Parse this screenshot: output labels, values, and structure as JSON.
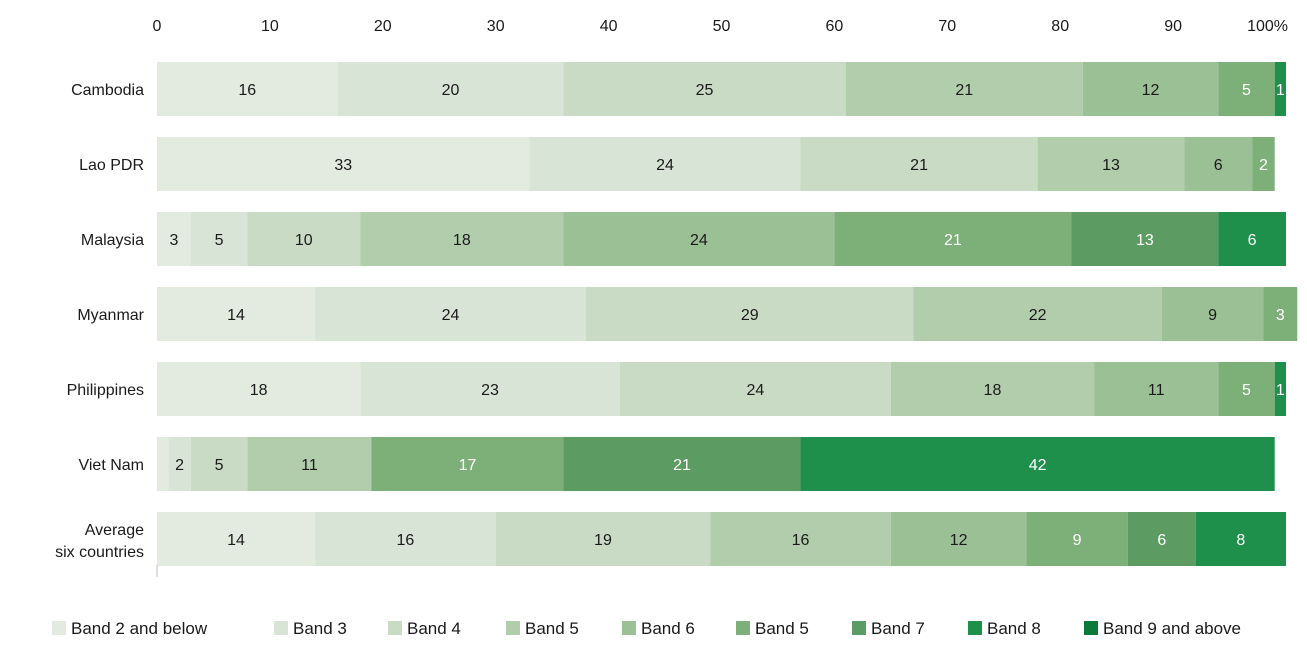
{
  "chart_data": {
    "type": "bar",
    "orientation": "horizontal",
    "stacked": true,
    "title": "",
    "xlabel": "",
    "ylabel": "",
    "xlim": [
      0,
      100
    ],
    "x_ticks": [
      {
        "value": 0,
        "label": "0"
      },
      {
        "value": 10,
        "label": "10"
      },
      {
        "value": 20,
        "label": "20"
      },
      {
        "value": 30,
        "label": "30"
      },
      {
        "value": 40,
        "label": "40"
      },
      {
        "value": 50,
        "label": "50"
      },
      {
        "value": 60,
        "label": "60"
      },
      {
        "value": 70,
        "label": "70"
      },
      {
        "value": 80,
        "label": "80"
      },
      {
        "value": 90,
        "label": "90"
      },
      {
        "value": 100,
        "label": "100%"
      }
    ],
    "grid": false,
    "legend_position": "bottom",
    "categories": [
      [
        "Cambodia"
      ],
      [
        "Lao PDR"
      ],
      [
        "Malaysia"
      ],
      [
        "Myanmar"
      ],
      [
        "Philippines"
      ],
      [
        "Viet Nam"
      ],
      [
        "Average",
        "six countries"
      ]
    ],
    "series": [
      {
        "name": "Band 2 and below",
        "color": "#e3ebe1",
        "values": [
          16,
          33,
          3,
          14,
          18,
          1,
          14
        ],
        "labels": [
          "16",
          "33",
          "3",
          "14",
          "18",
          "",
          "14"
        ],
        "label_color": "#1a1a1a"
      },
      {
        "name": "Band 3",
        "color": "#d8e4d5",
        "values": [
          20,
          24,
          5,
          24,
          23,
          2,
          16
        ],
        "labels": [
          "20",
          "24",
          "5",
          "24",
          "23",
          "2",
          "16"
        ],
        "label_color": "#1a1a1a"
      },
      {
        "name": "Band 4",
        "color": "#c9dbc5",
        "values": [
          25,
          21,
          10,
          29,
          24,
          5,
          19
        ],
        "labels": [
          "25",
          "21",
          "10",
          "29",
          "24",
          "5",
          "19"
        ],
        "label_color": "#1a1a1a"
      },
      {
        "name": "Band 5",
        "color": "#b2cdac",
        "values": [
          21,
          13,
          18,
          22,
          18,
          11,
          16
        ],
        "labels": [
          "21",
          "13",
          "18",
          "22",
          "18",
          "11",
          "16"
        ],
        "label_color": "#1a1a1a"
      },
      {
        "name": "Band 6",
        "color": "#9cc095",
        "values": [
          12,
          6,
          24,
          9,
          11,
          0,
          12
        ],
        "labels": [
          "12",
          "6",
          "24",
          "9",
          "11",
          "",
          "12"
        ],
        "label_color": "#1a1a1a"
      },
      {
        "name": "Band 5",
        "color": "#7db079",
        "values": [
          5,
          2,
          21,
          3,
          5,
          17,
          9
        ],
        "labels": [
          "5",
          "2",
          "21",
          "3",
          "5",
          "17",
          "9"
        ],
        "label_color": "#ffffff"
      },
      {
        "name": "Band 7",
        "color": "#5c9c63",
        "values": [
          0,
          0,
          13,
          0,
          0,
          21,
          6
        ],
        "labels": [
          "",
          "",
          "13",
          "",
          "",
          "21",
          "6"
        ],
        "label_color": "#ffffff"
      },
      {
        "name": "Band 8",
        "color": "#1f8f4c",
        "values": [
          1,
          0,
          6,
          0,
          1,
          42,
          8
        ],
        "labels": [
          "1",
          "",
          "6",
          "",
          "1",
          "42",
          "8"
        ],
        "label_color": "#ffffff"
      },
      {
        "name": "Band 9 and above",
        "color": "#0c7a3a",
        "values": [
          0,
          0,
          0,
          0,
          0,
          0,
          0
        ],
        "labels": [
          "",
          "",
          "",
          "",
          "",
          "",
          ""
        ],
        "label_color": "#ffffff"
      }
    ]
  }
}
